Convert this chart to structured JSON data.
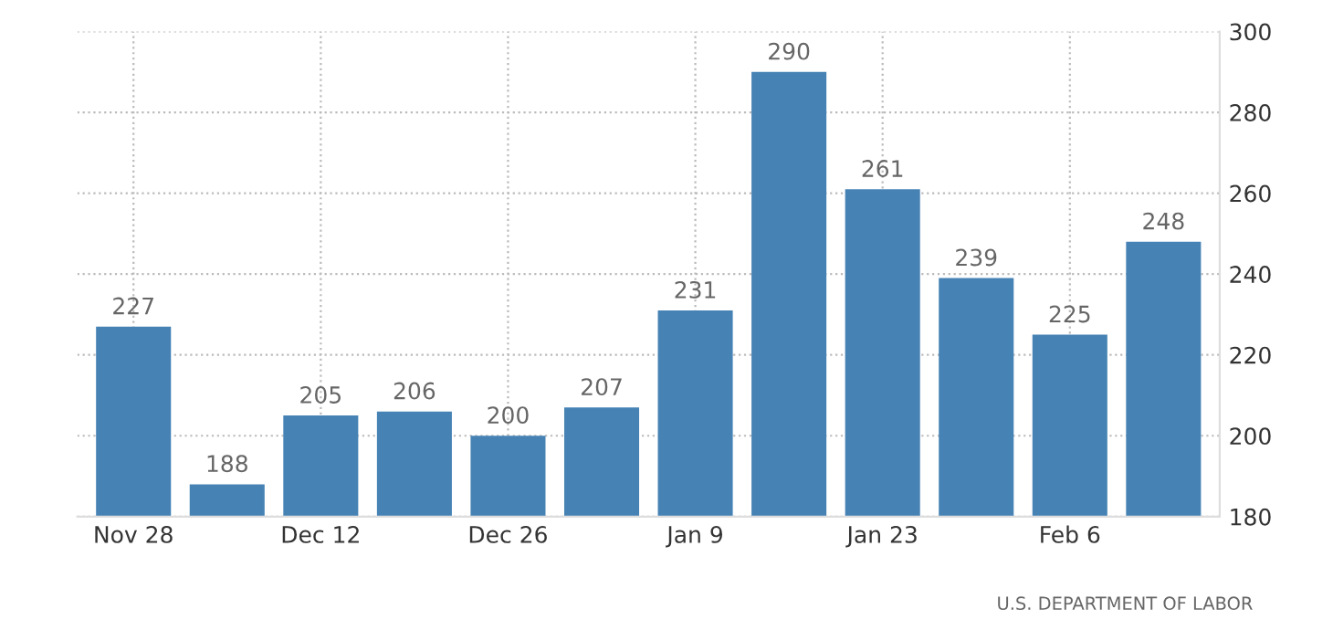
{
  "chart_data": {
    "type": "bar",
    "categories": [
      "Nov 28",
      null,
      "Dec 12",
      null,
      "Dec 26",
      null,
      "Jan 9",
      null,
      "Jan 23",
      null,
      "Feb 6",
      null
    ],
    "values": [
      227,
      188,
      205,
      206,
      200,
      207,
      231,
      290,
      261,
      239,
      225,
      248
    ],
    "color": "#4682b4",
    "ylim": [
      180,
      300
    ],
    "yticks": [
      180,
      200,
      220,
      240,
      260,
      280,
      300
    ],
    "grid": true,
    "data_labels": true,
    "annotations": [
      "U.S. DEPARTMENT OF LABOR"
    ]
  }
}
